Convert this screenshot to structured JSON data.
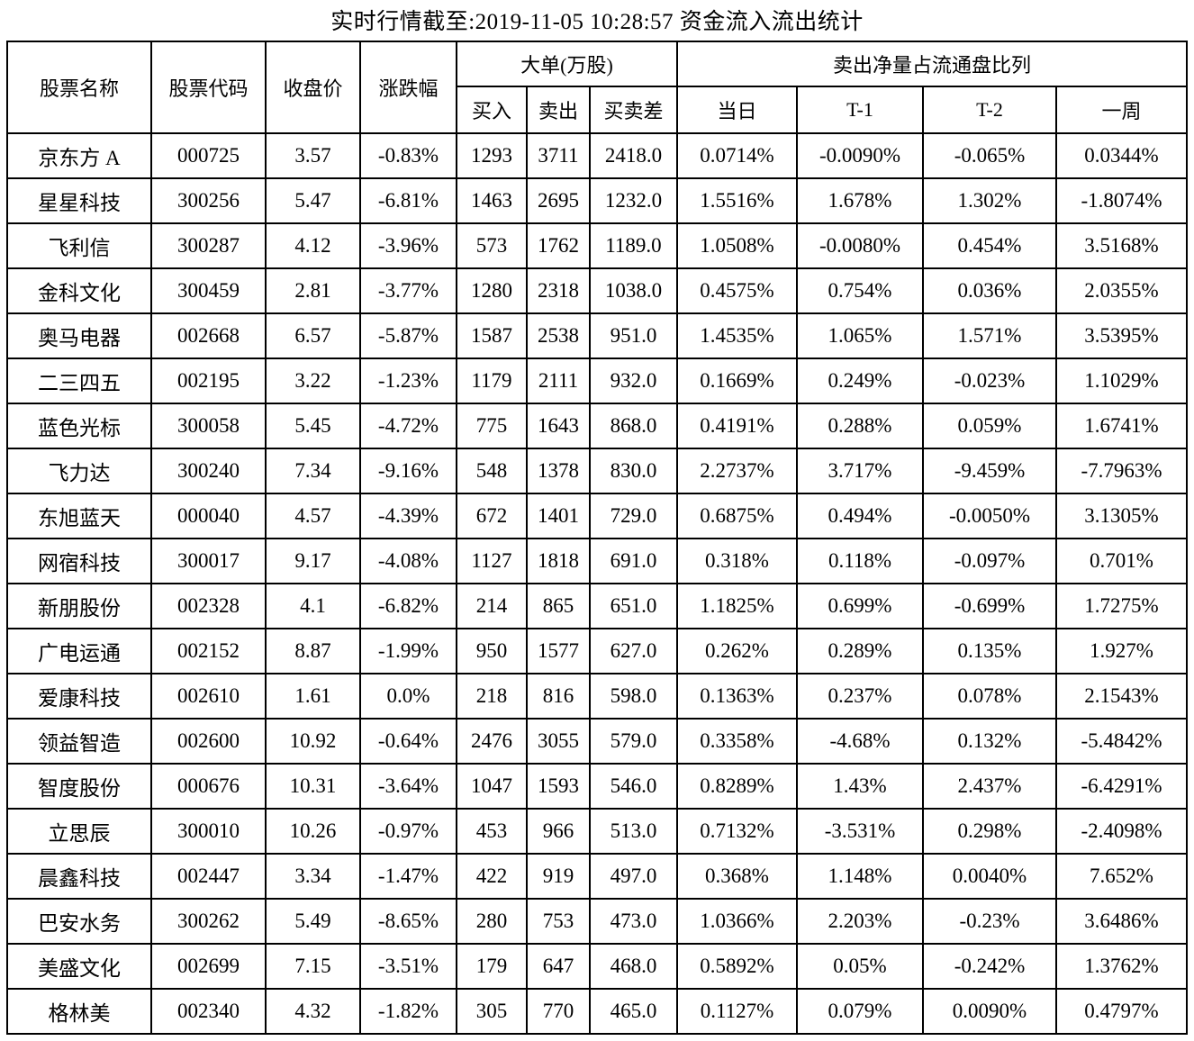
{
  "title": "实时行情截至:2019-11-05 10:28:57 资金流入流出统计",
  "colors": {
    "stock_name_text": "#2b4c7e",
    "stock_code_text": "#3a64a4",
    "body_text": "#000000",
    "grid_border": "#000000",
    "background": "#ffffff"
  },
  "chart_data": {
    "type": "table",
    "title": "实时行情截至:2019-11-05 10:28:57 资金流入流出统计",
    "grid": "on",
    "groups": [
      {
        "label": "大单(万股)",
        "columns": [
          "买入",
          "卖出",
          "买卖差"
        ]
      },
      {
        "label": "卖出净量占流通盘比列",
        "columns": [
          "当日",
          "T-1",
          "T-2",
          "一周"
        ]
      }
    ],
    "columns": [
      "股票名称",
      "股票代码",
      "收盘价",
      "涨跌幅",
      "买入",
      "卖出",
      "买卖差",
      "当日",
      "T-1",
      "T-2",
      "一周"
    ],
    "column_keys": [
      "stock-name",
      "stock-code",
      "close-price",
      "change-pct",
      "big-order-buy",
      "big-order-sell",
      "buy-sell-diff",
      "net-sell-today",
      "net-sell-t-1",
      "net-sell-t-2",
      "net-sell-week"
    ],
    "rows": [
      [
        "京东方 A",
        "000725",
        "3.57",
        "-0.83%",
        "1293",
        "3711",
        "2418.0",
        "0.0714%",
        "-0.0090%",
        "-0.065%",
        "0.0344%"
      ],
      [
        "星星科技",
        "300256",
        "5.47",
        "-6.81%",
        "1463",
        "2695",
        "1232.0",
        "1.5516%",
        "1.678%",
        "1.302%",
        "-1.8074%"
      ],
      [
        "飞利信",
        "300287",
        "4.12",
        "-3.96%",
        "573",
        "1762",
        "1189.0",
        "1.0508%",
        "-0.0080%",
        "0.454%",
        "3.5168%"
      ],
      [
        "金科文化",
        "300459",
        "2.81",
        "-3.77%",
        "1280",
        "2318",
        "1038.0",
        "0.4575%",
        "0.754%",
        "0.036%",
        "2.0355%"
      ],
      [
        "奥马电器",
        "002668",
        "6.57",
        "-5.87%",
        "1587",
        "2538",
        "951.0",
        "1.4535%",
        "1.065%",
        "1.571%",
        "3.5395%"
      ],
      [
        "二三四五",
        "002195",
        "3.22",
        "-1.23%",
        "1179",
        "2111",
        "932.0",
        "0.1669%",
        "0.249%",
        "-0.023%",
        "1.1029%"
      ],
      [
        "蓝色光标",
        "300058",
        "5.45",
        "-4.72%",
        "775",
        "1643",
        "868.0",
        "0.4191%",
        "0.288%",
        "0.059%",
        "1.6741%"
      ],
      [
        "飞力达",
        "300240",
        "7.34",
        "-9.16%",
        "548",
        "1378",
        "830.0",
        "2.2737%",
        "3.717%",
        "-9.459%",
        "-7.7963%"
      ],
      [
        "东旭蓝天",
        "000040",
        "4.57",
        "-4.39%",
        "672",
        "1401",
        "729.0",
        "0.6875%",
        "0.494%",
        "-0.0050%",
        "3.1305%"
      ],
      [
        "网宿科技",
        "300017",
        "9.17",
        "-4.08%",
        "1127",
        "1818",
        "691.0",
        "0.318%",
        "0.118%",
        "-0.097%",
        "0.701%"
      ],
      [
        "新朋股份",
        "002328",
        "4.1",
        "-6.82%",
        "214",
        "865",
        "651.0",
        "1.1825%",
        "0.699%",
        "-0.699%",
        "1.7275%"
      ],
      [
        "广电运通",
        "002152",
        "8.87",
        "-1.99%",
        "950",
        "1577",
        "627.0",
        "0.262%",
        "0.289%",
        "0.135%",
        "1.927%"
      ],
      [
        "爱康科技",
        "002610",
        "1.61",
        "0.0%",
        "218",
        "816",
        "598.0",
        "0.1363%",
        "0.237%",
        "0.078%",
        "2.1543%"
      ],
      [
        "领益智造",
        "002600",
        "10.92",
        "-0.64%",
        "2476",
        "3055",
        "579.0",
        "0.3358%",
        "-4.68%",
        "0.132%",
        "-5.4842%"
      ],
      [
        "智度股份",
        "000676",
        "10.31",
        "-3.64%",
        "1047",
        "1593",
        "546.0",
        "0.8289%",
        "1.43%",
        "2.437%",
        "-6.4291%"
      ],
      [
        "立思辰",
        "300010",
        "10.26",
        "-0.97%",
        "453",
        "966",
        "513.0",
        "0.7132%",
        "-3.531%",
        "0.298%",
        "-2.4098%"
      ],
      [
        "晨鑫科技",
        "002447",
        "3.34",
        "-1.47%",
        "422",
        "919",
        "497.0",
        "0.368%",
        "1.148%",
        "0.0040%",
        "7.652%"
      ],
      [
        "巴安水务",
        "300262",
        "5.49",
        "-8.65%",
        "280",
        "753",
        "473.0",
        "1.0366%",
        "2.203%",
        "-0.23%",
        "3.6486%"
      ],
      [
        "美盛文化",
        "002699",
        "7.15",
        "-3.51%",
        "179",
        "647",
        "468.0",
        "0.5892%",
        "0.05%",
        "-0.242%",
        "1.3762%"
      ],
      [
        "格林美",
        "002340",
        "4.32",
        "-1.82%",
        "305",
        "770",
        "465.0",
        "0.1127%",
        "0.079%",
        "0.0090%",
        "0.4797%"
      ]
    ]
  }
}
